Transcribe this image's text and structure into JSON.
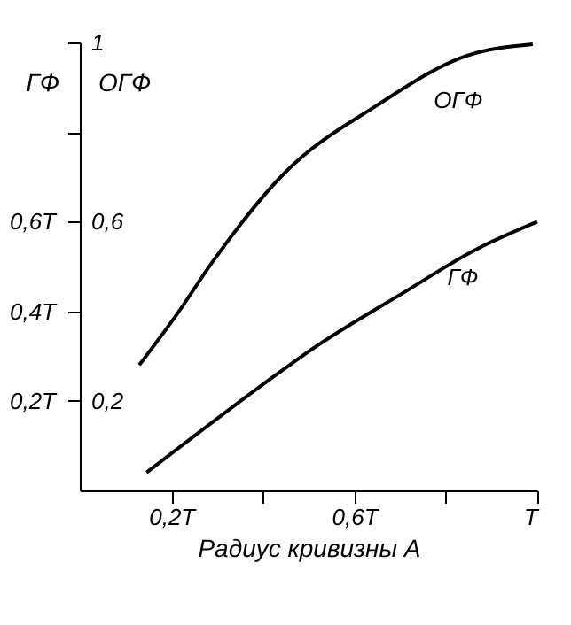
{
  "chart_data": {
    "type": "line",
    "xlabel": "Радиус кривизны A",
    "ylabel": "ГФ",
    "y2label": "ОГФ",
    "xlim": [
      0,
      1
    ],
    "xticks": [
      {
        "value": 0.2,
        "label": "0,2T"
      },
      {
        "value": 0.4,
        "label": null
      },
      {
        "value": 0.6,
        "label": "0,6T"
      },
      {
        "value": 0.8,
        "label": null
      },
      {
        "value": 1,
        "label": "T"
      }
    ],
    "ylim": [
      0,
      1
    ],
    "yticks": [
      {
        "value": 0.2,
        "label": "0,2T"
      },
      {
        "value": 0.4,
        "label": "0,4T"
      },
      {
        "value": 0.6,
        "label": "0,6T"
      }
    ],
    "y2lim": [
      0,
      1
    ],
    "y2ticks": [
      {
        "value": 0.2,
        "label": "0,2"
      },
      {
        "value": 0.6,
        "label": "0,6"
      },
      {
        "value": 0.8,
        "label": null
      },
      {
        "value": 1,
        "label": "1"
      }
    ],
    "series": [
      {
        "name": "ОГФ",
        "color": "#000000",
        "axis": "y2",
        "x": [
          0.13,
          0.21,
          0.29,
          0.445,
          0.65,
          0.845,
          0.99
        ],
        "values": [
          0.28,
          0.39,
          0.51,
          0.706,
          0.86,
          0.97,
          0.996
        ]
      },
      {
        "name": "ГФ",
        "color": "#000000",
        "x": [
          0.146,
          0.445,
          0.5,
          0.705,
          0.87,
          1.0
        ],
        "values": [
          0.04,
          0.27,
          0.31,
          0.44,
          0.54,
          0.6
        ]
      }
    ],
    "marker": "none",
    "line_style": "solid"
  }
}
